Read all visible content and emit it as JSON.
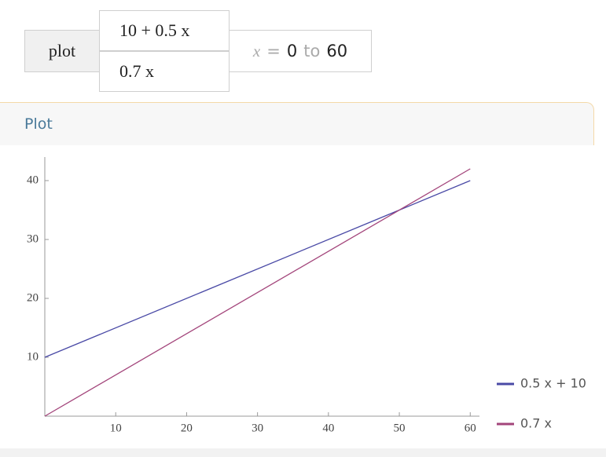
{
  "input": {
    "command": "plot",
    "functions": [
      "10 + 0.5 x",
      "0.7 x"
    ],
    "range": {
      "variable": "x",
      "relation": "=",
      "from": "0",
      "joiner": "to",
      "to": "60"
    }
  },
  "pod": {
    "title": "Plot"
  },
  "chart_data": {
    "type": "line",
    "x": [
      0,
      60
    ],
    "series": [
      {
        "name": "0.5 x + 10",
        "color": "#4a4aa6",
        "values": [
          10,
          40
        ]
      },
      {
        "name": "0.7 x",
        "color": "#a3457b",
        "values": [
          0,
          42
        ]
      }
    ],
    "xlim": [
      0,
      61.3
    ],
    "ylim": [
      0,
      44
    ],
    "xticks": [
      10,
      20,
      30,
      40,
      50,
      60
    ],
    "yticks": [
      10,
      20,
      30,
      40
    ],
    "legend": "right"
  }
}
